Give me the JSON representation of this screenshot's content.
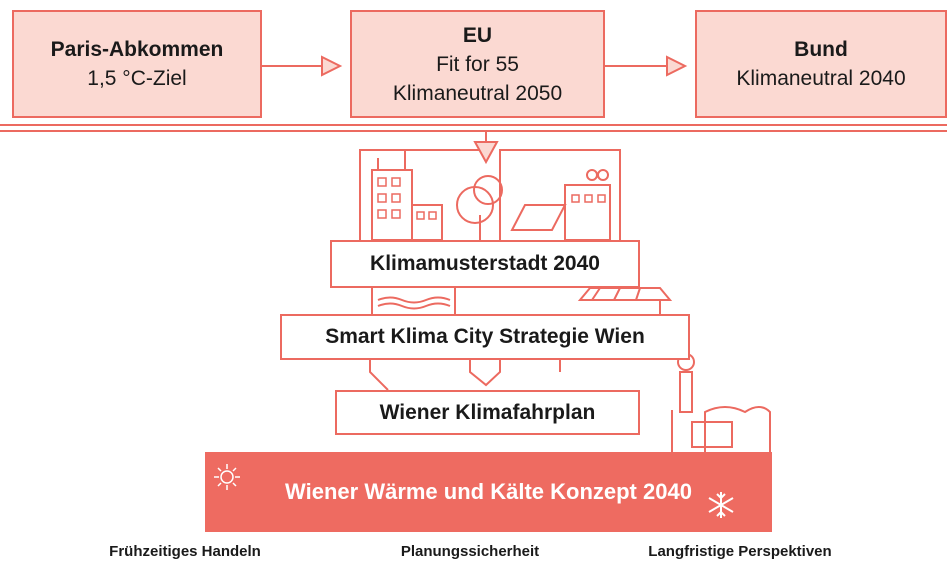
{
  "top_boxes": [
    {
      "title": "Paris-Abkommen",
      "lines": [
        "1,5 °C-Ziel"
      ]
    },
    {
      "title": "EU",
      "lines": [
        "Fit for 55",
        "Klimaneutral 2050"
      ]
    },
    {
      "title": "Bund",
      "lines": [
        "Klimaneutral 2040"
      ]
    }
  ],
  "levels": [
    "Klimamusterstadt 2040",
    "Smart Klima City Strategie Wien",
    "Wiener Klimafahrplan"
  ],
  "banner": {
    "title": "Wiener Wärme und Kälte Konzept 2040"
  },
  "footer": [
    "Frühzeitiges Handeln",
    "Planungssicherheit",
    "Langfristige Perspektiven"
  ]
}
